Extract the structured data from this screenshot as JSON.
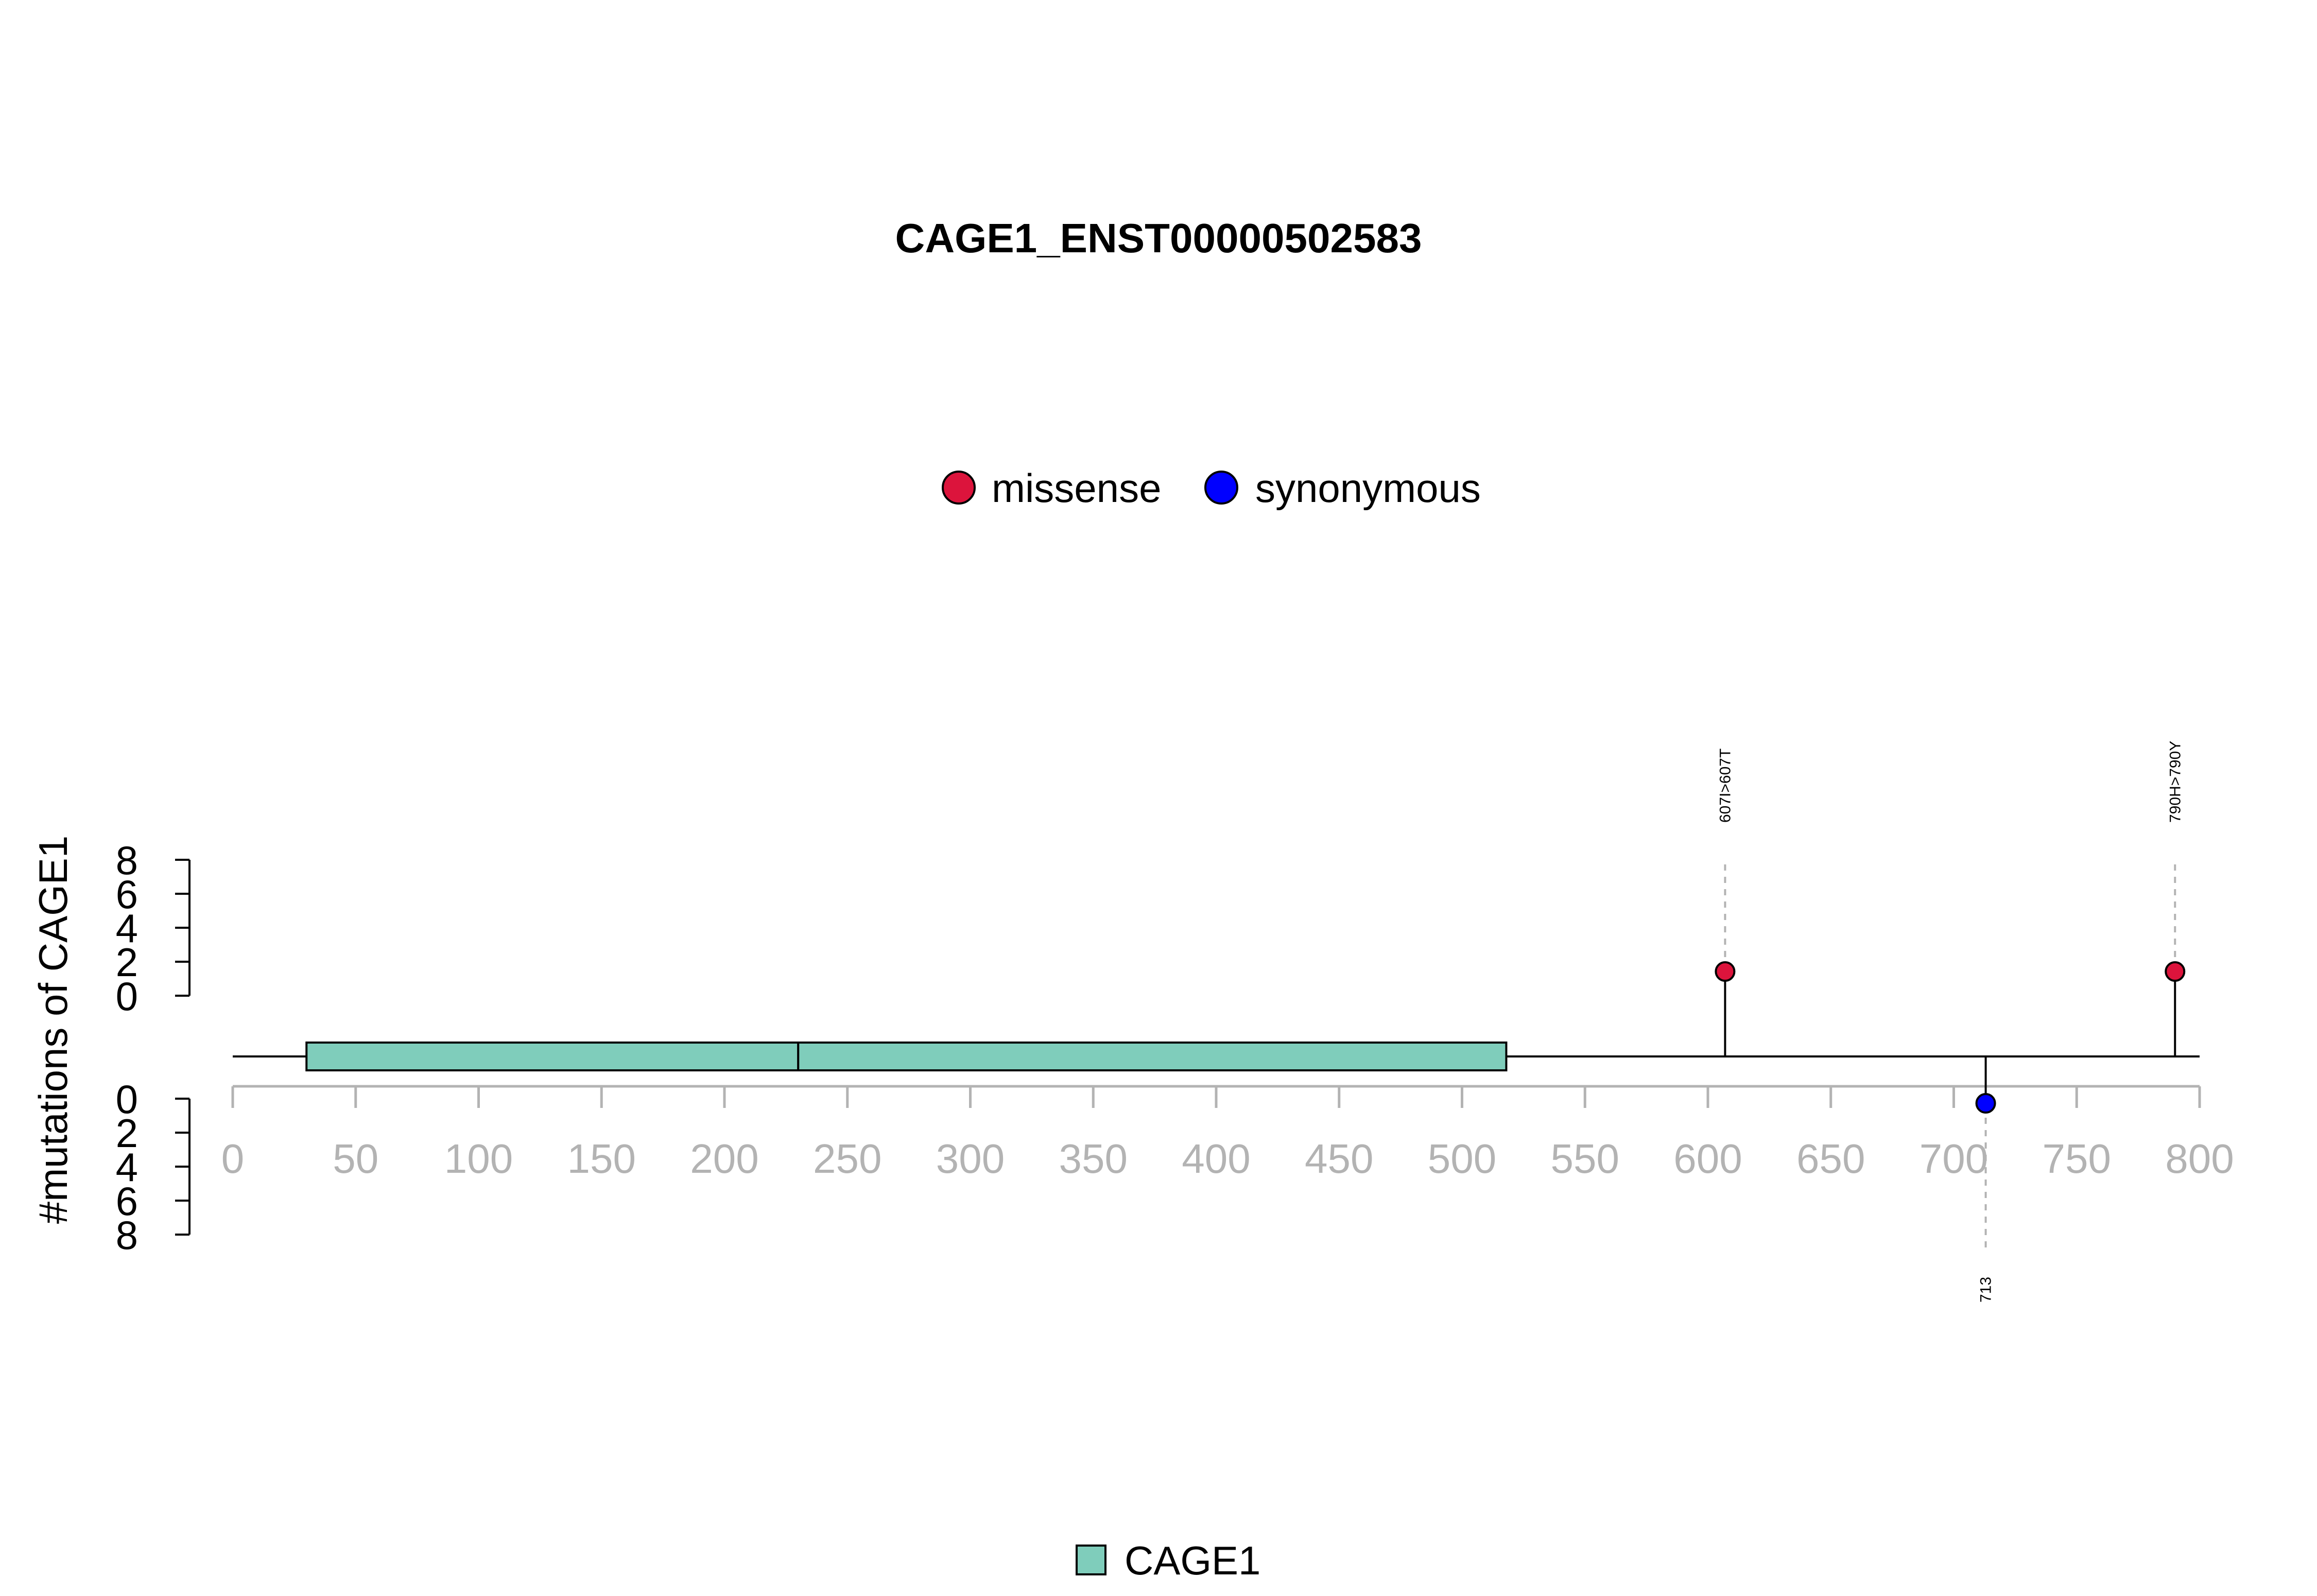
{
  "chart_data": {
    "type": "lollipop",
    "title": "CAGE1_ENST00000502583",
    "ylabel": "#mutations of CAGE1",
    "xlim": [
      0,
      800
    ],
    "x_ticks": [
      0,
      50,
      100,
      150,
      200,
      250,
      300,
      350,
      400,
      450,
      500,
      550,
      600,
      650,
      700,
      750,
      800
    ],
    "y_ticks_upper": [
      0,
      2,
      4,
      6,
      8
    ],
    "y_ticks_lower": [
      0,
      2,
      4,
      6,
      8
    ],
    "ylim": [
      0,
      8
    ],
    "legend": {
      "mutation_types": [
        {
          "label": "missense",
          "color": "#dc143c"
        },
        {
          "label": "synonymous",
          "color": "#0000ff"
        }
      ],
      "domains": [
        {
          "label": "CAGE1",
          "color": "#7fcdbb"
        }
      ]
    },
    "domains": [
      {
        "name": "CAGE1",
        "start": 30,
        "end": 230,
        "color": "#7fcdbb"
      },
      {
        "name": "CAGE1",
        "start": 230,
        "end": 518,
        "color": "#7fcdbb"
      }
    ],
    "protein_length": 800,
    "mutations": [
      {
        "position": 607,
        "label": "607I>607T",
        "type": "missense",
        "count": 1,
        "side": "top",
        "color": "#dc143c"
      },
      {
        "position": 790,
        "label": "790H>790Y",
        "type": "missense",
        "count": 1,
        "side": "top",
        "color": "#dc143c"
      },
      {
        "position": 713,
        "label": "713",
        "type": "synonymous",
        "count": 1,
        "side": "bottom",
        "color": "#0000ff"
      }
    ]
  }
}
